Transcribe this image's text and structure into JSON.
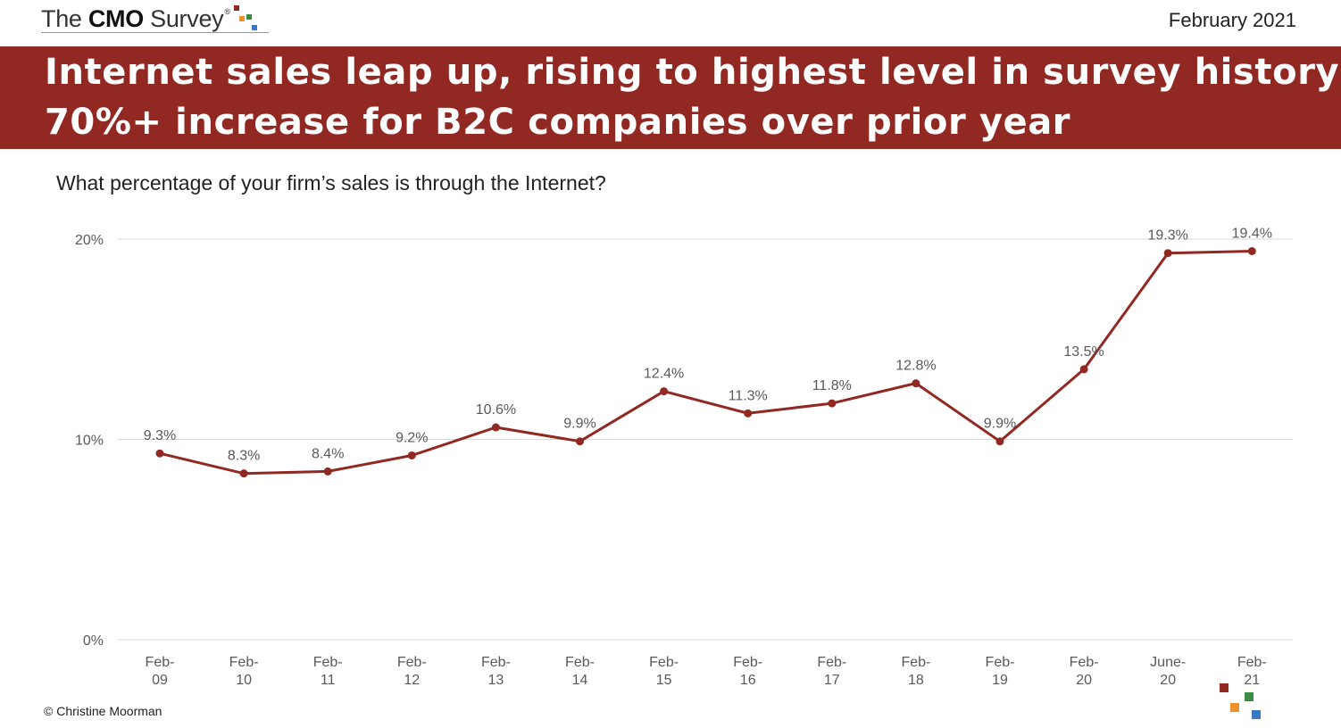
{
  "header": {
    "logo_prefix": "The ",
    "logo_bold": "CMO",
    "logo_suffix": " Survey",
    "logo_registered": "®",
    "date": "February 2021"
  },
  "banner": {
    "line1": "Internet sales leap up, rising to highest level in survey history;",
    "line2": "70%+ increase for B2C companies over prior year",
    "background_color": "#922822"
  },
  "question": "What percentage of your firm’s sales is through the Internet?",
  "chart_data": {
    "type": "line",
    "title": "",
    "xlabel": "",
    "ylabel": "",
    "categories": [
      [
        "Feb-",
        "09"
      ],
      [
        "Feb-",
        "10"
      ],
      [
        "Feb-",
        "11"
      ],
      [
        "Feb-",
        "12"
      ],
      [
        "Feb-",
        "13"
      ],
      [
        "Feb-",
        "14"
      ],
      [
        "Feb-",
        "15"
      ],
      [
        "Feb-",
        "16"
      ],
      [
        "Feb-",
        "17"
      ],
      [
        "Feb-",
        "18"
      ],
      [
        "Feb-",
        "19"
      ],
      [
        "Feb-",
        "20"
      ],
      [
        "June-",
        "20"
      ],
      [
        "Feb-",
        "21"
      ]
    ],
    "series": [
      {
        "values": [
          9.3,
          8.3,
          8.4,
          9.2,
          10.6,
          9.9,
          12.4,
          11.3,
          11.8,
          12.8,
          9.9,
          13.5,
          19.3,
          19.4
        ],
        "labels": [
          "9.3%",
          "8.3%",
          "8.4%",
          "9.2%",
          "10.6%",
          "9.9%",
          "12.4%",
          "11.3%",
          "11.8%",
          "12.8%",
          "9.9%",
          "13.5%",
          "19.3%",
          "19.4%"
        ],
        "color": "#922822"
      }
    ],
    "y_ticks": [
      0,
      10,
      20
    ],
    "y_tick_labels": [
      "0%",
      "10%",
      "20%"
    ],
    "ylim": [
      0,
      20
    ],
    "grid": true,
    "legend": "none"
  },
  "footer": {
    "copyright": "© Christine Moorman"
  },
  "brand_colors": {
    "red": "#922822",
    "orange": "#f0912f",
    "green": "#3c8c44",
    "blue": "#3a78c3"
  }
}
